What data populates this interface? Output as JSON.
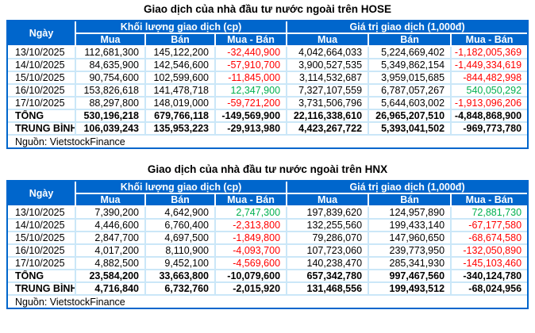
{
  "colors": {
    "header_bg": "#0066CC",
    "header_text": "#FFFFFF",
    "grid_light": "#CBE7F8",
    "outer_border": "#0066CC",
    "negative": "#FF0000",
    "positive": "#00B050",
    "text": "#000000"
  },
  "chart_data": [
    {
      "type": "table",
      "title": "Giao dịch của nhà đầu tư nước ngoài trên HOSE",
      "header": {
        "date": "Ngày",
        "volume_group": "Khối lượng giao dịch (cp)",
        "value_group": "Giá trị giao dịch (1,000đ)",
        "buy": "Mua",
        "sell": "Bán",
        "net": "Mua - Bán"
      },
      "rows": [
        [
          "13/10/2025",
          "112,681,300",
          "145,122,200",
          "-32,440,900",
          "4,042,664,033",
          "5,224,669,402",
          "-1,182,005,369"
        ],
        [
          "14/10/2025",
          "84,635,900",
          "142,546,600",
          "-57,910,700",
          "3,900,527,535",
          "5,349,862,154",
          "-1,449,334,619"
        ],
        [
          "15/10/2025",
          "90,754,600",
          "102,599,600",
          "-11,845,000",
          "3,114,532,687",
          "3,959,015,685",
          "-844,482,998"
        ],
        [
          "16/10/2025",
          "153,826,618",
          "141,478,718",
          "12,347,900",
          "7,327,107,559",
          "6,787,057,267",
          "540,050,292"
        ],
        [
          "17/10/2025",
          "88,297,800",
          "148,019,000",
          "-59,721,200",
          "3,731,506,796",
          "5,644,603,002",
          "-1,913,096,206"
        ]
      ],
      "total_row": [
        "TỔNG",
        "530,196,218",
        "679,766,118",
        "-149,569,900",
        "22,116,338,610",
        "26,965,207,510",
        "-4,848,868,900"
      ],
      "average_row": [
        "TRUNG BÌNH",
        "106,039,243",
        "135,953,223",
        "-29,913,980",
        "4,423,267,722",
        "5,393,041,502",
        "-969,773,780"
      ],
      "source": "Nguồn: VietstockFinance"
    },
    {
      "type": "table",
      "title": "Giao dịch của nhà đầu tư nước ngoài trên HNX",
      "header": {
        "date": "Ngày",
        "volume_group": "Khối lượng giao dịch (cp)",
        "value_group": "Giá trị giao dịch (1,000đ)",
        "buy": "Mua",
        "sell": "Bán",
        "net": "Mua - Bán"
      },
      "rows": [
        [
          "13/10/2025",
          "7,390,200",
          "4,642,900",
          "2,747,300",
          "197,839,620",
          "124,957,890",
          "72,881,730"
        ],
        [
          "14/10/2025",
          "4,446,600",
          "6,760,400",
          "-2,313,800",
          "132,255,560",
          "199,433,140",
          "-67,177,580"
        ],
        [
          "15/10/2025",
          "2,847,700",
          "4,697,500",
          "-1,849,800",
          "79,286,070",
          "147,960,650",
          "-68,674,580"
        ],
        [
          "16/10/2025",
          "4,017,200",
          "8,110,900",
          "-4,093,700",
          "107,723,060",
          "239,773,950",
          "-132,050,890"
        ],
        [
          "17/10/2025",
          "4,882,500",
          "9,452,100",
          "-4,569,600",
          "140,238,470",
          "285,341,930",
          "-145,103,460"
        ]
      ],
      "total_row": [
        "TỔNG",
        "23,584,200",
        "33,663,800",
        "-10,079,600",
        "657,342,780",
        "997,467,560",
        "-340,124,780"
      ],
      "average_row": [
        "TRUNG BÌNH",
        "4,716,840",
        "6,732,760",
        "-2,015,920",
        "131,468,556",
        "199,493,512",
        "-68,024,956"
      ],
      "source": "Nguồn: VietstockFinance"
    }
  ]
}
